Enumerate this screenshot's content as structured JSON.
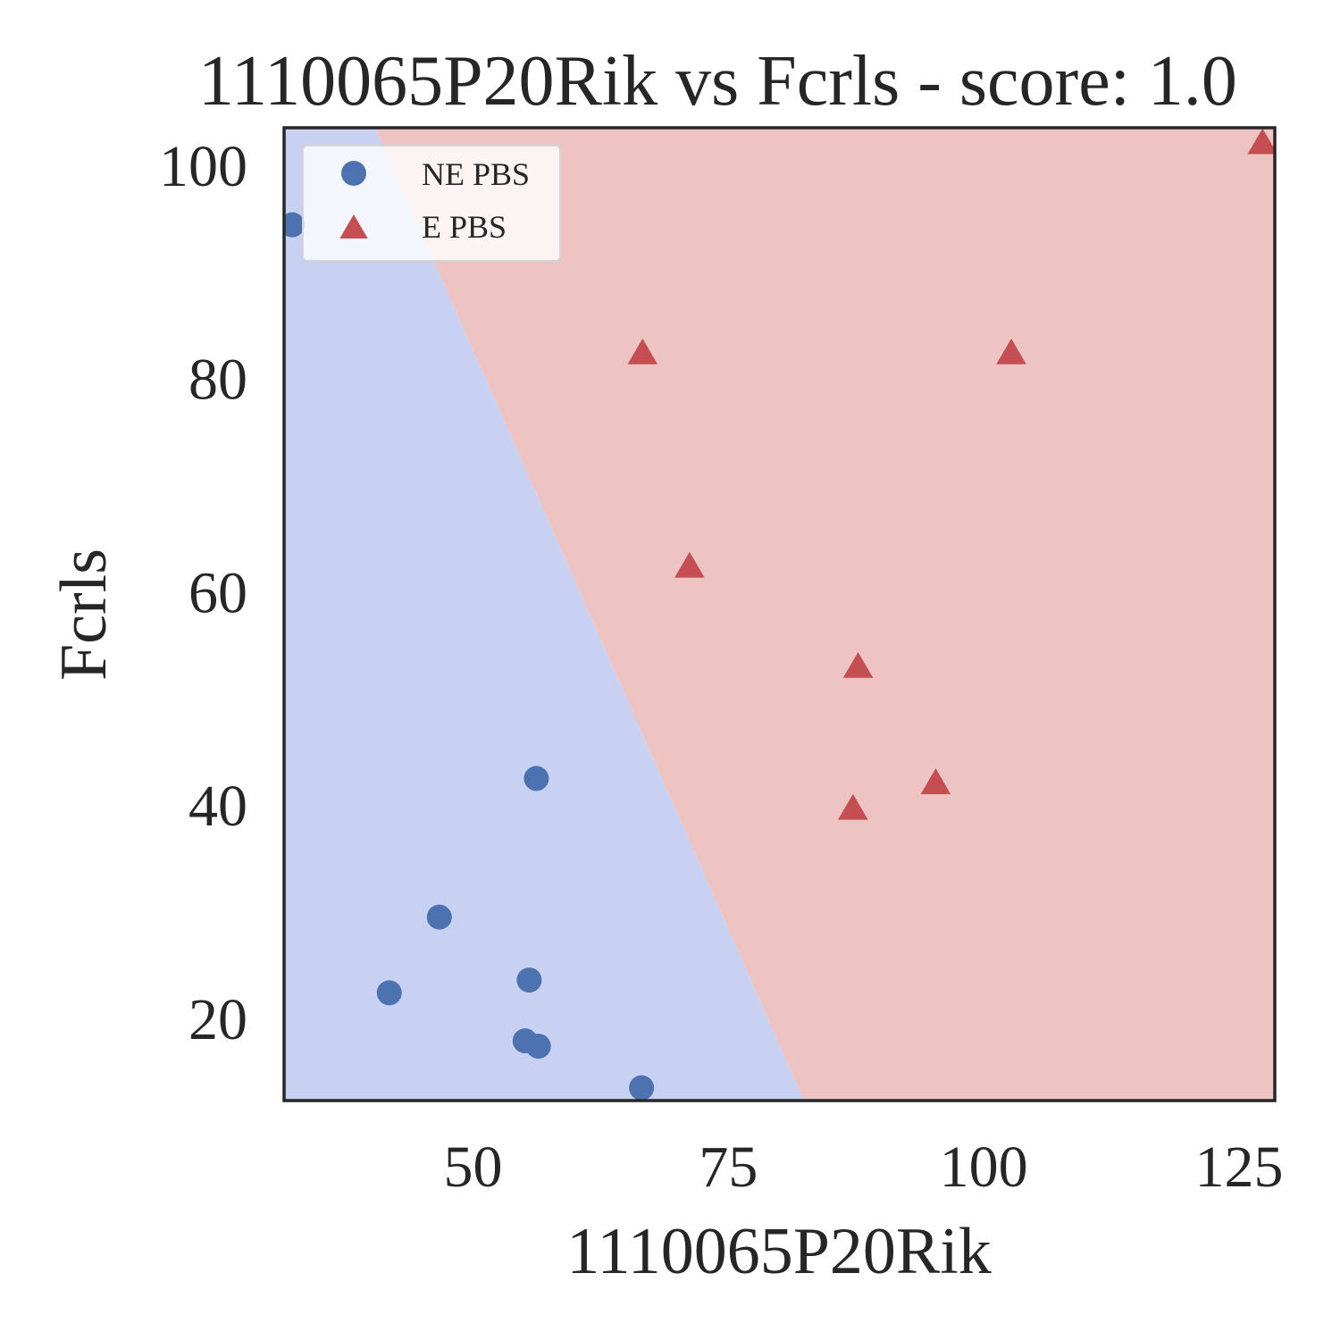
{
  "chart_data": {
    "type": "scatter",
    "title": "1110065P20Rik vs Fcrls - score: 1.0",
    "xlabel": "1110065P20Rik",
    "ylabel": "Fcrls",
    "xlim": [
      31.5,
      128.5
    ],
    "ylim": [
      12.3,
      103.5
    ],
    "xticks": [
      50,
      75,
      100,
      125
    ],
    "yticks": [
      20,
      40,
      60,
      80,
      100
    ],
    "grid": false,
    "legend": "upper-left",
    "decision_boundary": {
      "points": [
        [
          40.4,
          103.5
        ],
        [
          82.4,
          12.3
        ]
      ],
      "left_region_color": "#c9d1f2",
      "right_region_color": "#eec4c3"
    },
    "series": [
      {
        "name": "NE PBS",
        "marker": "circle",
        "color": "#4c72b0",
        "points": [
          [
            32.3,
            94.4
          ],
          [
            56.2,
            42.5
          ],
          [
            46.7,
            29.5
          ],
          [
            41.8,
            22.4
          ],
          [
            55.5,
            23.6
          ],
          [
            55.1,
            17.9
          ],
          [
            56.4,
            17.4
          ],
          [
            66.5,
            13.5
          ]
        ]
      },
      {
        "name": "E PBS",
        "marker": "triangle",
        "color": "#c44e52",
        "points": [
          [
            127.3,
            102.1
          ],
          [
            66.6,
            82.4
          ],
          [
            102.7,
            82.4
          ],
          [
            71.2,
            62.4
          ],
          [
            87.7,
            53.0
          ],
          [
            95.3,
            42.1
          ],
          [
            87.2,
            39.7
          ]
        ]
      }
    ]
  }
}
